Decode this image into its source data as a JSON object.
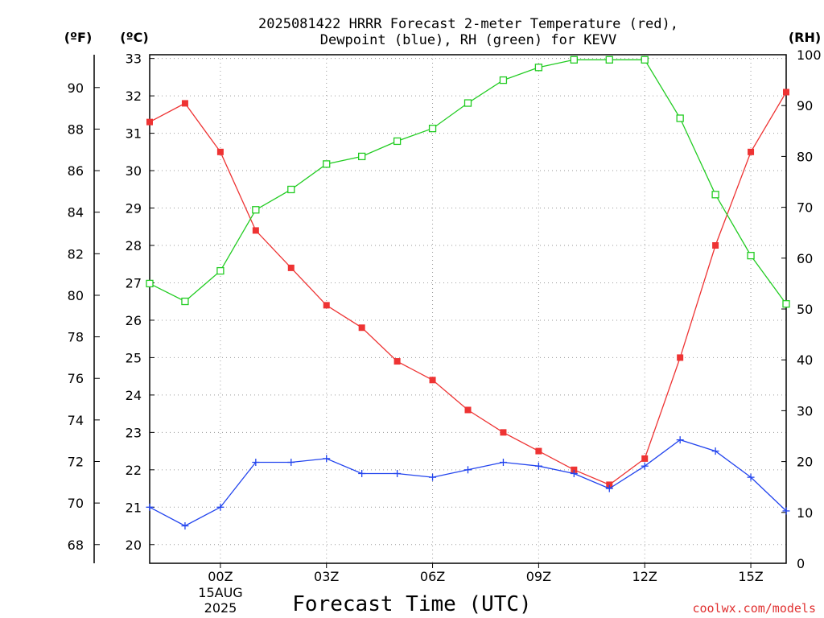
{
  "chart_data": {
    "type": "line",
    "title_line1": "2025081422 HRRR Forecast 2-meter Temperature (red),",
    "title_line2": "Dewpoint (blue), RH (green) for KEVV",
    "xlabel": "Forecast Time (UTC)",
    "credit": "coolwx.com/models",
    "date_label_line1": "15AUG",
    "date_label_line2": "2025",
    "units": {
      "fahrenheit": "(ºF)",
      "celsius": "(ºC)",
      "rh": "(RH)"
    },
    "x": [
      22,
      23,
      24,
      25,
      26,
      27,
      28,
      29,
      30,
      31,
      32,
      33,
      34,
      35,
      36,
      37,
      38,
      39,
      40
    ],
    "xlim": [
      22,
      40
    ],
    "x_ticks": [
      {
        "x": 24,
        "label": "00Z"
      },
      {
        "x": 27,
        "label": "03Z"
      },
      {
        "x": 30,
        "label": "06Z"
      },
      {
        "x": 33,
        "label": "09Z"
      },
      {
        "x": 36,
        "label": "12Z"
      },
      {
        "x": 39,
        "label": "15Z"
      }
    ],
    "left_axis_c": {
      "ylim": [
        19.5,
        33.1
      ],
      "ticks": [
        20,
        21,
        22,
        23,
        24,
        25,
        26,
        27,
        28,
        29,
        30,
        31,
        32,
        33
      ]
    },
    "left_axis_f": {
      "ticks": [
        68,
        70,
        72,
        74,
        76,
        78,
        80,
        82,
        84,
        86,
        88,
        90
      ]
    },
    "right_axis_rh": {
      "ylim": [
        0,
        100
      ],
      "ticks": [
        0,
        10,
        20,
        30,
        40,
        50,
        60,
        70,
        80,
        90,
        100
      ]
    },
    "series": [
      {
        "name": "Temperature (red)",
        "axis": "celsius",
        "color": "#ee3333",
        "marker": "filled-square",
        "values": [
          31.3,
          31.8,
          30.5,
          28.4,
          27.4,
          26.4,
          25.8,
          24.9,
          24.4,
          23.6,
          23.0,
          22.5,
          22.0,
          21.6,
          22.3,
          25.0,
          28.0,
          30.5,
          32.1
        ]
      },
      {
        "name": "Dewpoint (blue)",
        "axis": "celsius",
        "color": "#2244ee",
        "marker": "plus",
        "values": [
          21.0,
          20.5,
          21.0,
          22.2,
          22.2,
          22.3,
          21.9,
          21.9,
          21.8,
          22.0,
          22.2,
          22.1,
          21.9,
          21.5,
          22.1,
          22.8,
          22.5,
          21.8,
          20.9
        ]
      },
      {
        "name": "RH (green)",
        "axis": "rh",
        "color": "#22cc22",
        "marker": "open-square",
        "values": [
          55,
          51.5,
          57.5,
          69.5,
          73.5,
          78.5,
          80,
          83,
          85.5,
          90.5,
          95,
          97.5,
          99,
          99,
          99,
          87.5,
          72.5,
          60.5,
          51
        ]
      }
    ],
    "grid": true
  }
}
